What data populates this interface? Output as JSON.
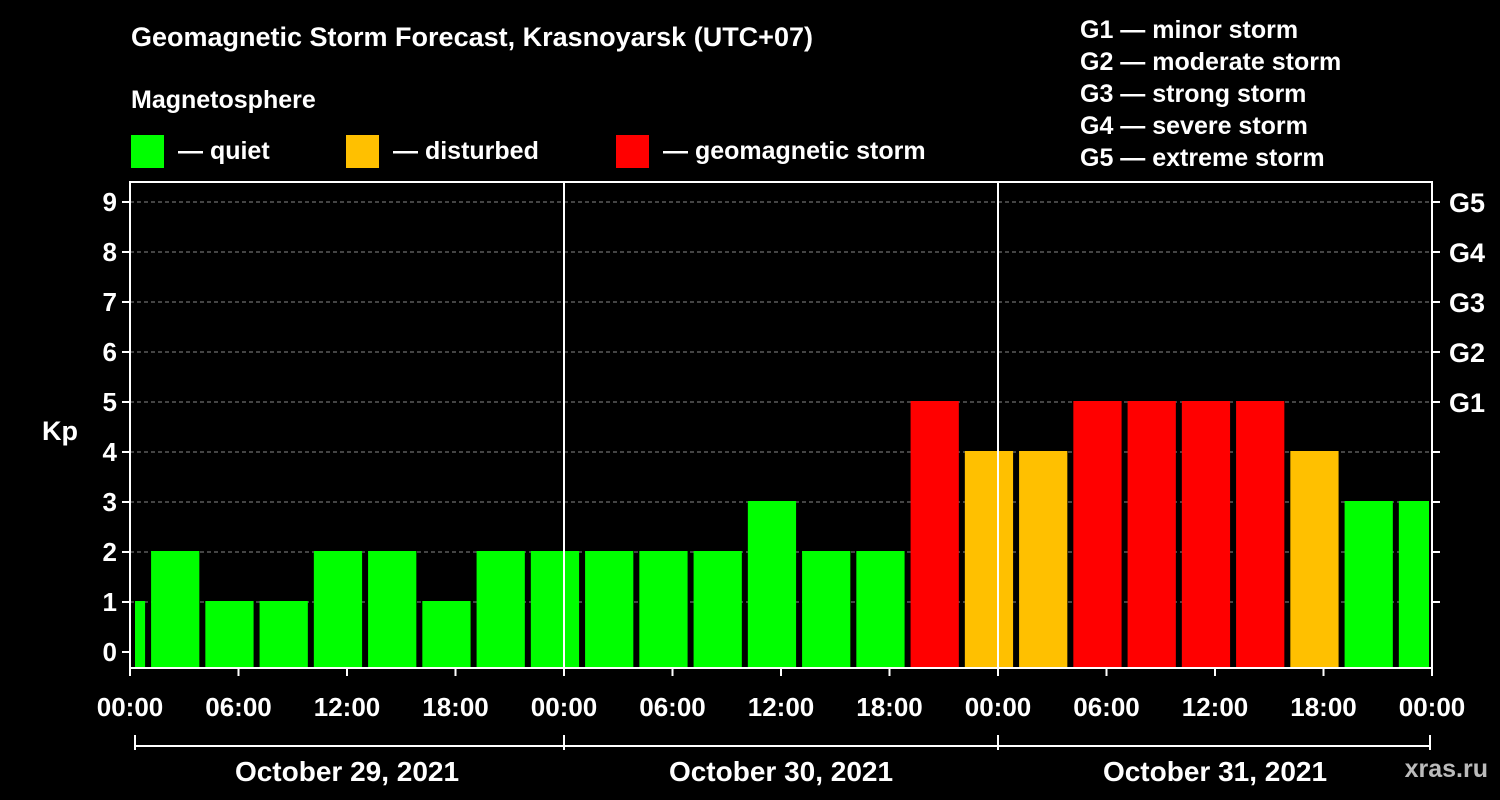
{
  "title": "Geomagnetic Storm Forecast, Krasnoyarsk (UTC+07)",
  "subtitle": "Magnetosphere",
  "legend": [
    {
      "label": "— quiet",
      "color": "#00ff00"
    },
    {
      "label": "— disturbed",
      "color": "#ffc000"
    },
    {
      "label": "— geomagnetic storm",
      "color": "#ff0000"
    }
  ],
  "g_levels": [
    "G1 — minor storm",
    "G2 — moderate storm",
    "G3 — strong storm",
    "G4 — severe storm",
    "G5 — extreme storm"
  ],
  "watermark": "xras.ru",
  "chart_data": {
    "type": "bar",
    "ylabel": "Kp",
    "ylim": [
      0,
      9
    ],
    "yticks": [
      0,
      1,
      2,
      3,
      4,
      5,
      6,
      7,
      8,
      9
    ],
    "right_ticks": [
      {
        "value": 5,
        "label": "G1"
      },
      {
        "value": 6,
        "label": "G2"
      },
      {
        "value": 7,
        "label": "G3"
      },
      {
        "value": 8,
        "label": "G4"
      },
      {
        "value": 9,
        "label": "G5"
      }
    ],
    "xrange_hours": [
      0,
      72
    ],
    "xtick_labels": [
      "00:00",
      "06:00",
      "12:00",
      "18:00",
      "00:00",
      "06:00",
      "12:00",
      "18:00",
      "00:00",
      "06:00",
      "12:00",
      "18:00",
      "00:00"
    ],
    "days": [
      "October 29, 2021",
      "October 30, 2021",
      "October 31, 2021"
    ],
    "bars": [
      {
        "start": 0,
        "end": 1,
        "kp": 1,
        "level": "quiet"
      },
      {
        "start": 1,
        "end": 4,
        "kp": 2,
        "level": "quiet"
      },
      {
        "start": 4,
        "end": 7,
        "kp": 1,
        "level": "quiet"
      },
      {
        "start": 7,
        "end": 10,
        "kp": 1,
        "level": "quiet"
      },
      {
        "start": 10,
        "end": 13,
        "kp": 2,
        "level": "quiet"
      },
      {
        "start": 13,
        "end": 16,
        "kp": 2,
        "level": "quiet"
      },
      {
        "start": 16,
        "end": 19,
        "kp": 1,
        "level": "quiet"
      },
      {
        "start": 19,
        "end": 22,
        "kp": 2,
        "level": "quiet"
      },
      {
        "start": 22,
        "end": 25,
        "kp": 2,
        "level": "quiet"
      },
      {
        "start": 25,
        "end": 28,
        "kp": 2,
        "level": "quiet"
      },
      {
        "start": 28,
        "end": 31,
        "kp": 2,
        "level": "quiet"
      },
      {
        "start": 31,
        "end": 34,
        "kp": 2,
        "level": "quiet"
      },
      {
        "start": 34,
        "end": 37,
        "kp": 3,
        "level": "quiet"
      },
      {
        "start": 37,
        "end": 40,
        "kp": 2,
        "level": "quiet"
      },
      {
        "start": 40,
        "end": 43,
        "kp": 2,
        "level": "quiet"
      },
      {
        "start": 43,
        "end": 46,
        "kp": 5,
        "level": "storm"
      },
      {
        "start": 46,
        "end": 49,
        "kp": 4,
        "level": "disturbed"
      },
      {
        "start": 49,
        "end": 52,
        "kp": 4,
        "level": "disturbed"
      },
      {
        "start": 52,
        "end": 55,
        "kp": 5,
        "level": "storm"
      },
      {
        "start": 55,
        "end": 58,
        "kp": 5,
        "level": "storm"
      },
      {
        "start": 58,
        "end": 61,
        "kp": 5,
        "level": "storm"
      },
      {
        "start": 61,
        "end": 64,
        "kp": 5,
        "level": "storm"
      },
      {
        "start": 64,
        "end": 67,
        "kp": 4,
        "level": "disturbed"
      },
      {
        "start": 67,
        "end": 70,
        "kp": 3,
        "level": "quiet"
      },
      {
        "start": 70,
        "end": 72,
        "kp": 3,
        "level": "quiet"
      }
    ],
    "colors": {
      "quiet": "#00ff00",
      "disturbed": "#ffc000",
      "storm": "#ff0000"
    }
  }
}
